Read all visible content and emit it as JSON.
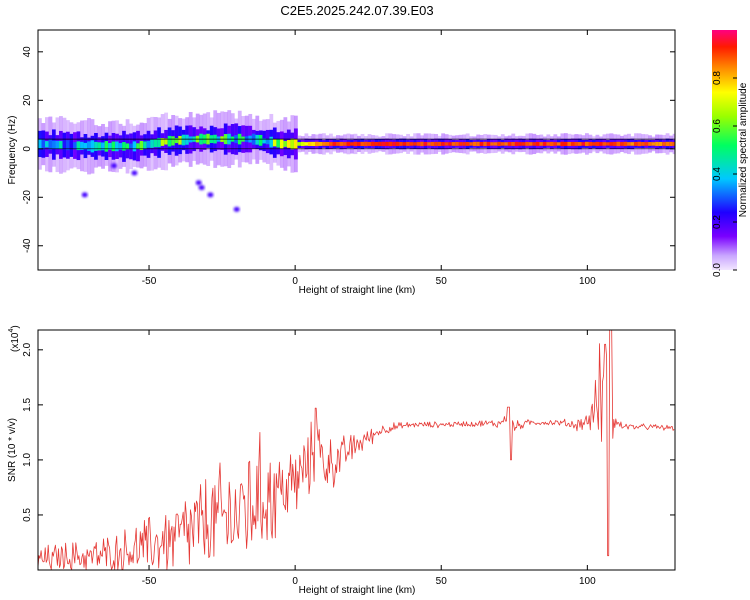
{
  "title": "C2E5.2025.242.07.39.E03",
  "chart_data": [
    {
      "type": "heatmap",
      "name": "spectrogram",
      "xlabel": "Height of straight line (km)",
      "ylabel": "Frequency (Hz)",
      "xlim": [
        -88,
        130
      ],
      "ylim": [
        -50,
        49
      ],
      "xticks": [
        -50,
        0,
        50,
        100
      ],
      "yticks": [
        -40,
        -20,
        0,
        20,
        40
      ],
      "colorbar": {
        "label": "Normalized spectral amplitude",
        "range": [
          0.0,
          1.0
        ],
        "ticks": [
          0.0,
          0.2,
          0.4,
          0.6,
          0.8
        ]
      },
      "reference_lines_hz": [
        4,
        0
      ],
      "ridge": {
        "description": "dominant energy ridge near 2 Hz; patchy and wide for heights below about 0 km, narrow and saturated above",
        "x": [
          -88,
          -70,
          -55,
          -45,
          -35,
          -25,
          -15,
          -5,
          0,
          10,
          30,
          60,
          100,
          130
        ],
        "center_hz": [
          2,
          1,
          1,
          3,
          4,
          4,
          4,
          2,
          2,
          2,
          2,
          2,
          2,
          2
        ],
        "amplitude": [
          0.35,
          0.4,
          0.45,
          0.55,
          0.55,
          0.5,
          0.45,
          0.6,
          0.7,
          0.95,
          0.95,
          0.95,
          0.95,
          0.9
        ]
      },
      "scatter_blobs": [
        {
          "x": -55,
          "y": -10
        },
        {
          "x": -33,
          "y": -14
        },
        {
          "x": -32,
          "y": -16
        },
        {
          "x": -29,
          "y": -19
        },
        {
          "x": -20,
          "y": -25
        },
        {
          "x": -72,
          "y": -19
        },
        {
          "x": -62,
          "y": -7
        }
      ]
    },
    {
      "type": "line",
      "name": "snr",
      "xlabel": "Height of straight line (km)",
      "ylabel": "SNR (10 * v/v)",
      "y_multiplier_label": "(x10",
      "y_multiplier_exponent": "4",
      "y_multiplier_close": ")",
      "xlim": [
        -88,
        130
      ],
      "ylim": [
        0,
        2.18
      ],
      "xticks": [
        -50,
        0,
        50,
        100
      ],
      "yticks": [
        0.5,
        1.0,
        1.5,
        2.0
      ],
      "line_color": "#e53935",
      "x": [
        -88,
        -80,
        -70,
        -60,
        -50,
        -40,
        -30,
        -20,
        -15,
        -10,
        -5,
        0,
        5,
        7,
        10,
        15,
        20,
        25,
        30,
        40,
        50,
        60,
        70,
        73,
        75,
        80,
        90,
        95,
        100,
        103,
        105,
        106,
        107,
        108,
        109,
        110,
        115,
        120,
        130
      ],
      "values": [
        0.08,
        0.12,
        0.12,
        0.15,
        0.22,
        0.3,
        0.42,
        0.5,
        0.62,
        0.68,
        0.72,
        0.8,
        0.95,
        1.2,
        0.95,
        1.0,
        1.12,
        1.2,
        1.28,
        1.32,
        1.32,
        1.33,
        1.33,
        1.4,
        1.3,
        1.34,
        1.34,
        1.32,
        1.34,
        1.5,
        1.7,
        1.2,
        1.05,
        1.35,
        1.5,
        1.32,
        1.3,
        1.3,
        1.29
      ],
      "noise": [
        0.1,
        0.1,
        0.12,
        0.15,
        0.2,
        0.28,
        0.35,
        0.4,
        0.45,
        0.4,
        0.3,
        0.25,
        0.22,
        0.3,
        0.2,
        0.15,
        0.1,
        0.06,
        0.04,
        0.02,
        0.02,
        0.02,
        0.03,
        0.06,
        0.04,
        0.02,
        0.02,
        0.04,
        0.06,
        0.2,
        0.45,
        0.9,
        0.9,
        0.5,
        0.2,
        0.05,
        0.02,
        0.02,
        0.02
      ],
      "spikes": [
        {
          "x": 7,
          "y": 1.47
        },
        {
          "x": 73,
          "y": 1.48
        },
        {
          "x": 74,
          "y": 1.0
        },
        {
          "x": 106,
          "y": 2.05
        },
        {
          "x": 107,
          "y": 0.13
        },
        {
          "x": 108,
          "y": 2.18
        }
      ]
    }
  ]
}
